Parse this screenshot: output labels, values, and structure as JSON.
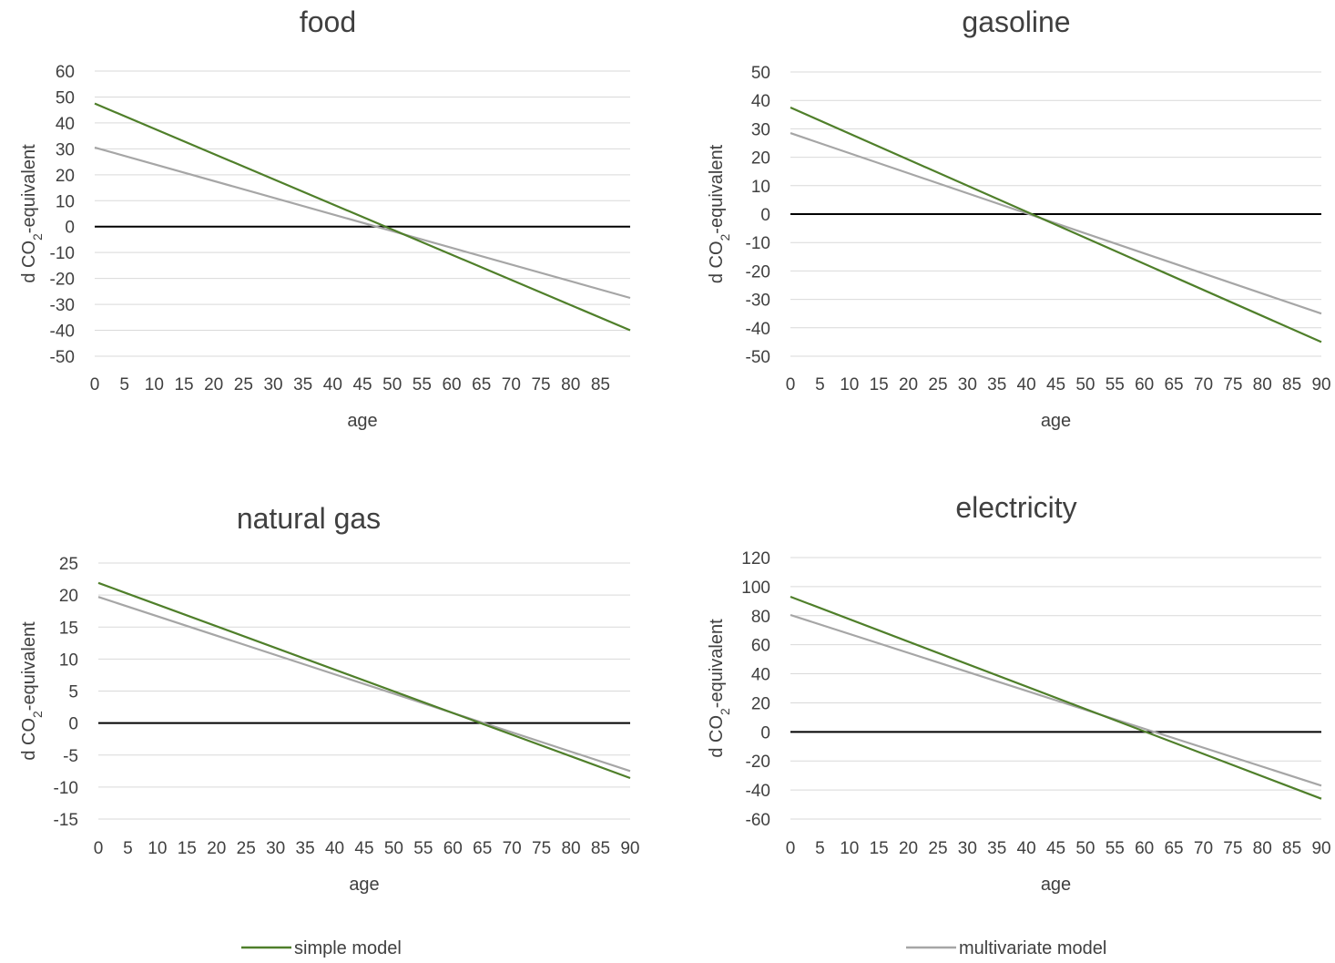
{
  "colors": {
    "simple": "#4f7f2a",
    "multivariate": "#a6a6a6",
    "zero_line": "#000000",
    "grid": "#d9d9d9"
  },
  "legend": [
    {
      "name": "simple model",
      "color": "#4f7f2a"
    },
    {
      "name": "multivariate model",
      "color": "#a6a6a6"
    }
  ],
  "chart_data": [
    {
      "type": "line",
      "title": "food",
      "xlabel": "age",
      "ylabel_parts": [
        "d CO",
        "2",
        "-equivalent"
      ],
      "x_ticks": [
        "0",
        "5",
        "10",
        "15",
        "20",
        "25",
        "30",
        "35",
        "40",
        "45",
        "50",
        "55",
        "60",
        "65",
        "70",
        "75",
        "80",
        "85"
      ],
      "x_range": [
        0,
        89
      ],
      "y_ticks": [
        60,
        50,
        40,
        30,
        20,
        10,
        0,
        -10,
        -20,
        -30,
        -40,
        -50
      ],
      "ylim": [
        -50,
        60
      ],
      "series": [
        {
          "name": "simple model",
          "x": [
            0,
            89
          ],
          "values": [
            47.5,
            -40
          ]
        },
        {
          "name": "multivariate model",
          "x": [
            0,
            89
          ],
          "values": [
            30.5,
            -27.5
          ]
        }
      ]
    },
    {
      "type": "line",
      "title": "gasoline",
      "xlabel": "age",
      "ylabel_parts": [
        "d CO",
        "2",
        "-equivalent"
      ],
      "x_ticks": [
        "0",
        "5",
        "10",
        "15",
        "20",
        "25",
        "30",
        "35",
        "40",
        "45",
        "50",
        "55",
        "60",
        "65",
        "70",
        "75",
        "80",
        "85",
        "90"
      ],
      "x_range": [
        0,
        90
      ],
      "y_ticks": [
        50,
        40,
        30,
        20,
        10,
        0,
        -10,
        -20,
        -30,
        -40,
        -50
      ],
      "ylim": [
        -50,
        50
      ],
      "series": [
        {
          "name": "simple model",
          "x": [
            0,
            90
          ],
          "values": [
            37.5,
            -45
          ]
        },
        {
          "name": "multivariate model",
          "x": [
            0,
            90
          ],
          "values": [
            28.5,
            -35
          ]
        }
      ]
    },
    {
      "type": "line",
      "title": "natural gas",
      "xlabel": "age",
      "ylabel_parts": [
        "d CO",
        "2",
        "-equivalent"
      ],
      "x_ticks": [
        "0",
        "5",
        "10",
        "15",
        "20",
        "25",
        "30",
        "35",
        "40",
        "45",
        "50",
        "55",
        "60",
        "65",
        "70",
        "75",
        "80",
        "85",
        "90"
      ],
      "x_range": [
        0,
        90
      ],
      "y_ticks": [
        25,
        20,
        15,
        10,
        5,
        0,
        -5,
        -10,
        -15
      ],
      "ylim": [
        -15,
        25
      ],
      "series": [
        {
          "name": "simple model",
          "x": [
            0,
            90
          ],
          "values": [
            21.9,
            -8.6
          ]
        },
        {
          "name": "multivariate model",
          "x": [
            0,
            90
          ],
          "values": [
            19.7,
            -7.5
          ]
        }
      ]
    },
    {
      "type": "line",
      "title": "electricity",
      "xlabel": "age",
      "ylabel_parts": [
        "d CO",
        "2",
        "-equivalent"
      ],
      "x_ticks": [
        "0",
        "5",
        "10",
        "15",
        "20",
        "25",
        "30",
        "35",
        "40",
        "45",
        "50",
        "55",
        "60",
        "65",
        "70",
        "75",
        "80",
        "85",
        "90"
      ],
      "x_range": [
        0,
        90
      ],
      "y_ticks": [
        120,
        100,
        80,
        60,
        40,
        20,
        0,
        -20,
        -40,
        -60
      ],
      "ylim": [
        -60,
        120
      ],
      "series": [
        {
          "name": "simple model",
          "x": [
            0,
            90
          ],
          "values": [
            93,
            -46
          ]
        },
        {
          "name": "multivariate model",
          "x": [
            0,
            90
          ],
          "values": [
            80.5,
            -37
          ]
        }
      ]
    }
  ]
}
